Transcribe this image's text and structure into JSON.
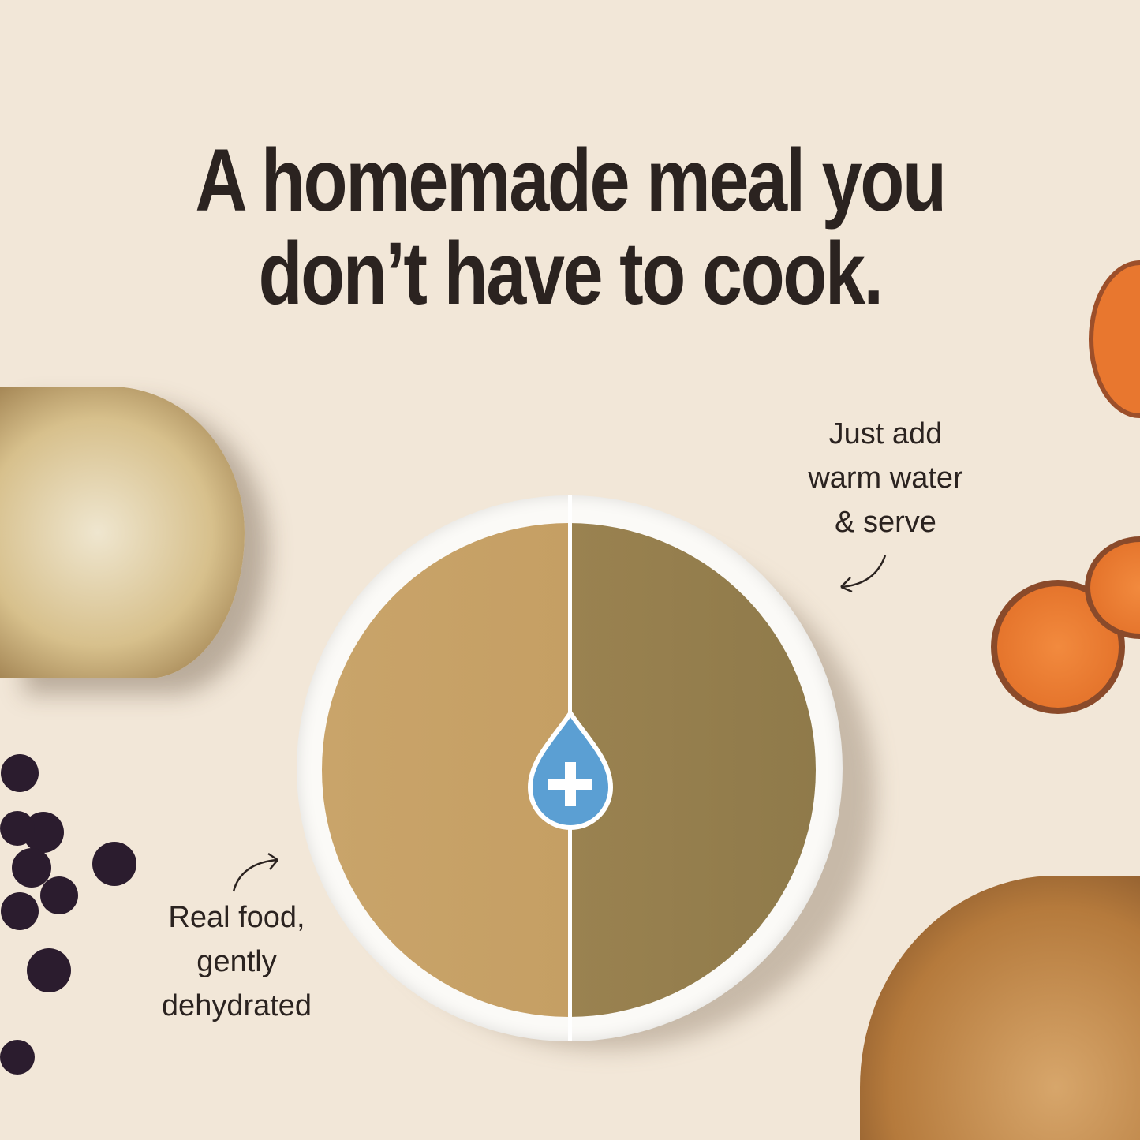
{
  "headline": {
    "line1": "A homemade meal you",
    "line2": "don’t have to cook."
  },
  "captions": {
    "right": {
      "line1": "Just add",
      "line2": "warm water",
      "line3": "& serve"
    },
    "left": {
      "line1": "Real food,",
      "line2": "gently",
      "line3": "dehydrated"
    }
  },
  "icons": {
    "drop": "water-drop-plus-icon",
    "arrow": "curved-arrow-icon"
  },
  "colors": {
    "background": "#f2e7d8",
    "text": "#2b2320",
    "drop": "#5b9fd3",
    "dry_food": "#c9a46a",
    "wet_food": "#9a8250"
  }
}
